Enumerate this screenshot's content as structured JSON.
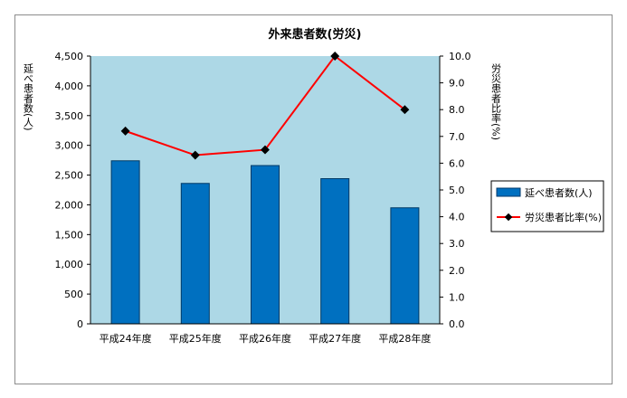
{
  "chart_data": {
    "type": "bar",
    "title": "外来患者数(労災)",
    "categories": [
      "平成24年度",
      "平成25年度",
      "平成26年度",
      "平成27年度",
      "平成28年度"
    ],
    "series": [
      {
        "name": "延べ患者数(人)",
        "type": "bar",
        "axis": "left",
        "color": "#0070c0",
        "values": [
          2740,
          2360,
          2660,
          2440,
          1950
        ]
      },
      {
        "name": "労災患者比率(%)",
        "type": "line",
        "axis": "right",
        "color": "#ff0000",
        "values": [
          7.2,
          6.3,
          6.5,
          10.0,
          8.0
        ]
      }
    ],
    "ylabel": "延べ患者数(人)",
    "ylabel_right": "労災患者比率(%)",
    "ylim": [
      0,
      4500
    ],
    "ylim_right": [
      0,
      10
    ],
    "yticks": [
      "0",
      "500",
      "1,000",
      "1,500",
      "2,000",
      "2,500",
      "3,000",
      "3,500",
      "4,000",
      "4,500"
    ],
    "yticks_right": [
      "0.0",
      "1.0",
      "2.0",
      "3.0",
      "4.0",
      "5.0",
      "6.0",
      "7.0",
      "8.0",
      "9.0",
      "10.0"
    ],
    "plot_background": "#add8e6",
    "grid": false,
    "legend_position": "right"
  }
}
